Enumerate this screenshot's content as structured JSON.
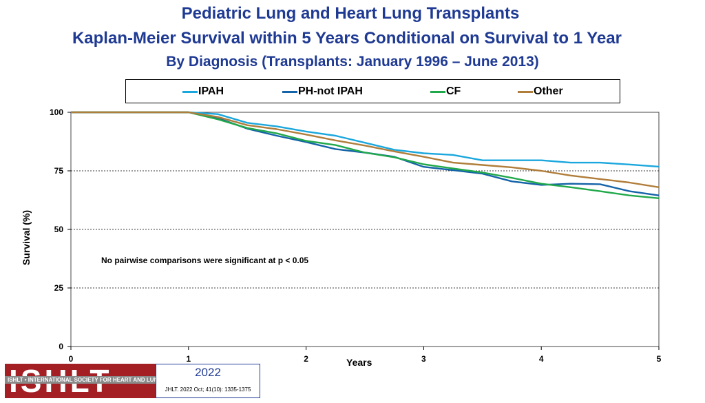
{
  "header": {
    "title_line1": "Pediatric Lung and Heart Lung Transplants",
    "title_line2": "Kaplan-Meier Survival within 5 Years Conditional on Survival to 1 Year",
    "title_line3": "By Diagnosis (Transplants: January 1996 – June 2013)"
  },
  "colors": {
    "title": "#1f3a93",
    "IPAH": "#1aa7dd",
    "PH_not_IPAH": "#1563a8",
    "CF": "#21a84a",
    "Other": "#b07d3a"
  },
  "chart_data": {
    "type": "line",
    "title": "Kaplan-Meier Survival within 5 Years Conditional on Survival to 1 Year",
    "xlabel": "Years",
    "ylabel": "Survival (%)",
    "xlim": [
      0,
      5
    ],
    "ylim": [
      0,
      100
    ],
    "xticks": [
      0,
      1,
      2,
      3,
      4,
      5
    ],
    "yticks": [
      0,
      25,
      50,
      75,
      100
    ],
    "grid": "horizontal dotted",
    "legend_position": "top",
    "annotation": "No pairwise comparisons were significant at p < 0.05",
    "x": [
      0,
      1,
      1.25,
      1.5,
      1.75,
      2,
      2.25,
      2.5,
      2.75,
      3,
      3.25,
      3.5,
      3.75,
      4,
      4.25,
      4.5,
      4.75,
      5
    ],
    "series": [
      {
        "name": "IPAH",
        "key": "IPAH",
        "values": [
          100,
          100,
          99.2,
          95.5,
          94,
          91.8,
          90,
          87,
          84,
          82.5,
          81.8,
          79.5,
          79.5,
          79.5,
          78.5,
          78.5,
          77.7,
          76.8
        ]
      },
      {
        "name": "PH-not IPAH",
        "key": "PH_not_IPAH",
        "values": [
          100,
          100,
          97.5,
          93,
          90,
          87.3,
          84.3,
          82.8,
          81,
          76.7,
          75.3,
          73.8,
          70.5,
          69,
          69.5,
          69.3,
          66.3,
          64.5
        ]
      },
      {
        "name": "CF",
        "key": "CF",
        "values": [
          100,
          100,
          97,
          93.3,
          91,
          87.8,
          86,
          82.8,
          80.8,
          77.8,
          76,
          74.3,
          72,
          69.5,
          68,
          66.3,
          64.5,
          63.3
        ]
      },
      {
        "name": "Other",
        "key": "Other",
        "values": [
          100,
          100,
          98,
          94.5,
          92.8,
          90.5,
          88,
          85.8,
          83.3,
          81,
          78.5,
          77.5,
          76.5,
          75,
          73,
          71.5,
          70,
          68
        ]
      }
    ]
  },
  "footer": {
    "logo_text": "ISHLT",
    "logo_band": "ISHLT • INTERNATIONAL SOCIETY FOR HEART AND LUNG TRANSPLANTATION",
    "year": "2022",
    "citation": "JHLT. 2022 Oct; 41(10): 1335-1375"
  }
}
